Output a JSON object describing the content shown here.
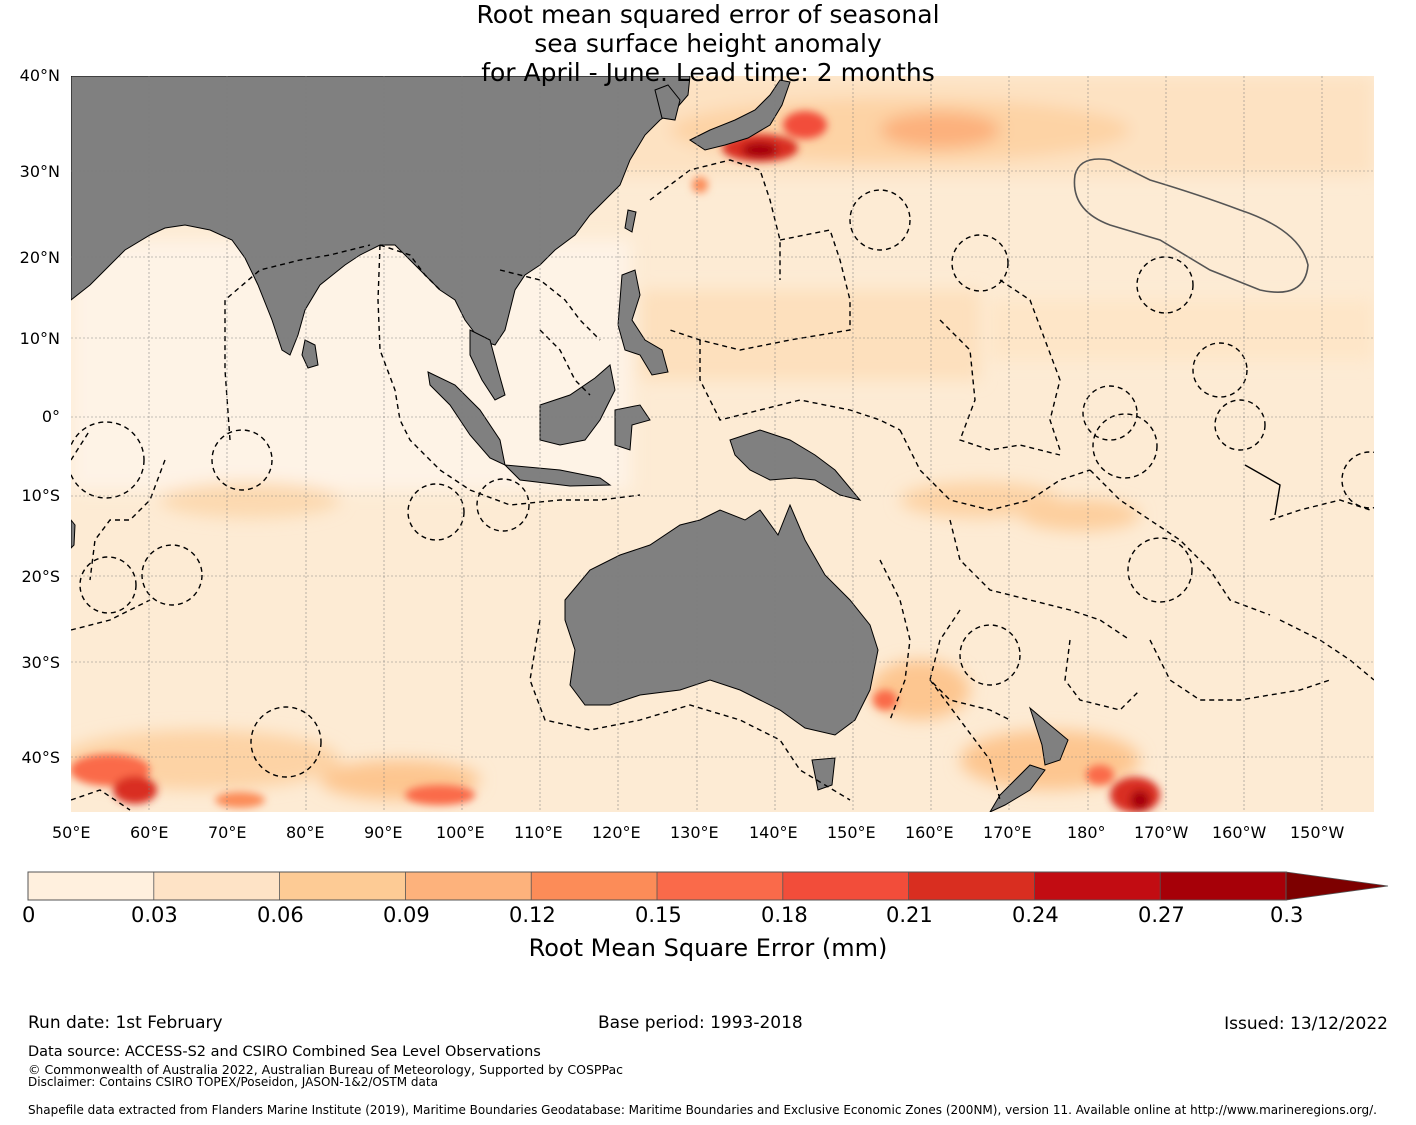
{
  "title": {
    "line1": "Root mean squared error of seasonal",
    "line2": "sea surface height anomaly",
    "line3": "for April - June. Lead time: 2 months"
  },
  "map": {
    "lat_labels": [
      "40°N",
      "30°N",
      "20°N",
      "10°N",
      "0°",
      "10°S",
      "20°S",
      "30°S",
      "40°S"
    ],
    "lon_labels": [
      "50°E",
      "60°E",
      "70°E",
      "80°E",
      "90°E",
      "100°E",
      "110°E",
      "120°E",
      "130°E",
      "140°E",
      "150°E",
      "160°E",
      "170°E",
      "180°",
      "170°W",
      "160°W",
      "150°W"
    ],
    "colors": {
      "land": "#808080",
      "ocean_base": "#fef0de",
      "grid": "#7d7d7d"
    },
    "icons": [
      "eez-boundary-lines",
      "coastline",
      "hotspot-region"
    ]
  },
  "colorbar": {
    "ticks": [
      "0",
      "0.03",
      "0.06",
      "0.09",
      "0.12",
      "0.15",
      "0.18",
      "0.21",
      "0.24",
      "0.27",
      "0.3"
    ],
    "colors": [
      "#fff0de",
      "#fee3c6",
      "#fdcb95",
      "#fdb27c",
      "#fc8c58",
      "#fa6a4a",
      "#f24d3a",
      "#d92e20",
      "#c20c12",
      "#a60008",
      "#7d0000"
    ],
    "label": "Root Mean Square Error (mm)"
  },
  "footer": {
    "run_date": "Run date: 1st February",
    "base_period": "Base period: 1993-2018",
    "issued": "Issued: 13/12/2022",
    "data_source": "Data source: ACCESS-S2 and CSIRO Combined Sea Level Observations",
    "copyright": "© Commonwealth of Australia 2022, Australian Bureau of Meteorology, Supported by COSPPac",
    "disclaimer": "Disclaimer: Contains CSIRO TOPEX/Poseidon, JASON-1&2/OSTM data",
    "shapefile": "Shapefile data extracted from Flanders Marine Institute (2019), Maritime Boundaries Geodatabase: Maritime Boundaries and Exclusive Economic Zones (200NM), version 11. Available online at http://www.marineregions.org/."
  }
}
